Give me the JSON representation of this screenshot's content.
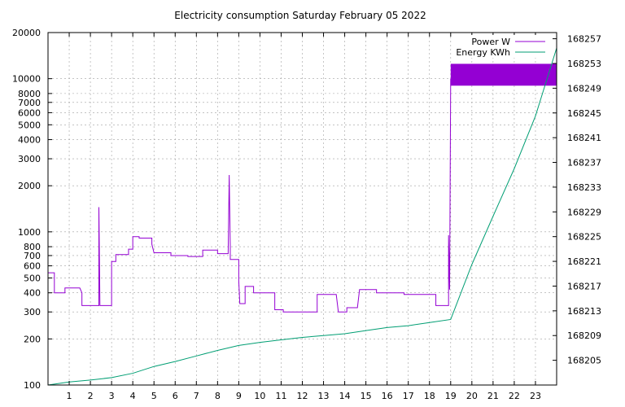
{
  "chart_data": {
    "type": "line",
    "title": "Electricity consumption Saturday February 05 2022",
    "x_axis": {
      "range": [
        0,
        24
      ],
      "ticks": [
        1,
        2,
        3,
        4,
        5,
        6,
        7,
        8,
        9,
        10,
        11,
        12,
        13,
        14,
        15,
        16,
        17,
        18,
        19,
        20,
        21,
        22,
        23
      ],
      "grid": true
    },
    "y_axis_left": {
      "scale": "log",
      "range": [
        100,
        20000
      ],
      "ticks": [
        100,
        200,
        300,
        400,
        500,
        600,
        700,
        800,
        1000,
        2000,
        3000,
        4000,
        5000,
        6000,
        7000,
        8000,
        10000,
        20000
      ],
      "grid": true
    },
    "y_axis_right": {
      "scale": "linear",
      "range": [
        168201,
        168258
      ],
      "ticks": [
        168205,
        168209,
        168213,
        168217,
        168221,
        168225,
        168229,
        168233,
        168237,
        168241,
        168245,
        168249,
        168253,
        168257
      ]
    },
    "legend": {
      "placement": "top-right"
    },
    "series": [
      {
        "name": "Power W",
        "color": "#9400d3",
        "axis": "left",
        "points": [
          [
            0.0,
            540
          ],
          [
            0.3,
            540
          ],
          [
            0.3,
            400
          ],
          [
            0.8,
            400
          ],
          [
            0.8,
            430
          ],
          [
            1.5,
            430
          ],
          [
            1.6,
            400
          ],
          [
            1.6,
            330
          ],
          [
            2.4,
            330
          ],
          [
            2.4,
            1450
          ],
          [
            2.45,
            330
          ],
          [
            3.0,
            330
          ],
          [
            3.0,
            640
          ],
          [
            3.2,
            640
          ],
          [
            3.2,
            710
          ],
          [
            3.8,
            710
          ],
          [
            3.8,
            770
          ],
          [
            4.0,
            770
          ],
          [
            4.0,
            930
          ],
          [
            4.3,
            930
          ],
          [
            4.3,
            910
          ],
          [
            4.9,
            910
          ],
          [
            4.9,
            830
          ],
          [
            5.0,
            730
          ],
          [
            5.8,
            730
          ],
          [
            5.8,
            700
          ],
          [
            6.6,
            700
          ],
          [
            6.6,
            690
          ],
          [
            7.3,
            690
          ],
          [
            7.3,
            760
          ],
          [
            8.0,
            760
          ],
          [
            8.0,
            720
          ],
          [
            8.5,
            720
          ],
          [
            8.55,
            2350
          ],
          [
            8.6,
            800
          ],
          [
            8.6,
            660
          ],
          [
            9.0,
            660
          ],
          [
            9.0,
            480
          ],
          [
            9.05,
            340
          ],
          [
            9.3,
            340
          ],
          [
            9.3,
            440
          ],
          [
            9.7,
            440
          ],
          [
            9.7,
            400
          ],
          [
            10.7,
            400
          ],
          [
            10.7,
            310
          ],
          [
            11.1,
            310
          ],
          [
            11.1,
            300
          ],
          [
            12.7,
            300
          ],
          [
            12.7,
            390
          ],
          [
            13.6,
            390
          ],
          [
            13.7,
            300
          ],
          [
            14.1,
            300
          ],
          [
            14.1,
            320
          ],
          [
            14.6,
            320
          ],
          [
            14.7,
            420
          ],
          [
            15.5,
            420
          ],
          [
            15.5,
            400
          ],
          [
            16.8,
            400
          ],
          [
            16.8,
            390
          ],
          [
            18.3,
            390
          ],
          [
            18.3,
            330
          ],
          [
            18.9,
            330
          ],
          [
            18.9,
            950
          ],
          [
            18.95,
            420
          ],
          [
            19.0,
            10000
          ]
        ],
        "filled_band": {
          "x": [
            19.0,
            24.0
          ],
          "y": [
            9000,
            12500
          ]
        }
      },
      {
        "name": "Energy KWh",
        "color": "#009e73",
        "axis": "right",
        "points": [
          [
            0.0,
            168201.0
          ],
          [
            1.0,
            168201.5
          ],
          [
            2.0,
            168201.8
          ],
          [
            3.0,
            168202.2
          ],
          [
            4.0,
            168202.9
          ],
          [
            5.0,
            168204.0
          ],
          [
            6.0,
            168204.8
          ],
          [
            7.0,
            168205.7
          ],
          [
            8.0,
            168206.6
          ],
          [
            9.0,
            168207.4
          ],
          [
            10.0,
            168207.9
          ],
          [
            11.0,
            168208.3
          ],
          [
            12.0,
            168208.7
          ],
          [
            13.0,
            168209.0
          ],
          [
            14.0,
            168209.3
          ],
          [
            15.0,
            168209.8
          ],
          [
            16.0,
            168210.3
          ],
          [
            17.0,
            168210.6
          ],
          [
            18.0,
            168211.1
          ],
          [
            19.0,
            168211.6
          ],
          [
            20.0,
            168220.5
          ],
          [
            21.0,
            168228.3
          ],
          [
            22.0,
            168236.0
          ],
          [
            23.0,
            168244.5
          ],
          [
            24.0,
            168255.5
          ]
        ]
      }
    ]
  }
}
